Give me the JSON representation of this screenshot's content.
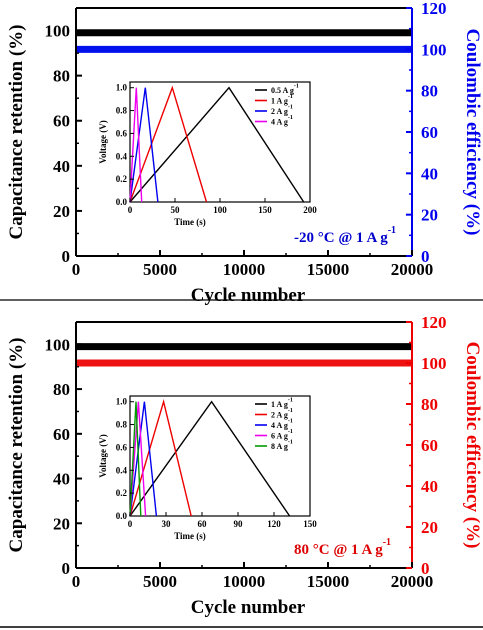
{
  "chart_data": [
    {
      "id": "top",
      "type": "scatter",
      "title": "",
      "xlabel": "Cycle number",
      "ylabel_left": "Capacitance retention (%)",
      "ylabel_right": "Coulombic efficiency (%)",
      "xlim": [
        0,
        20000
      ],
      "ylim_left": [
        0,
        110
      ],
      "ylim_right": [
        0,
        120
      ],
      "xticks": [
        "0",
        "5000",
        "10000",
        "15000",
        "20000"
      ],
      "yticks_left": [
        "0",
        "20",
        "40",
        "60",
        "80",
        "100"
      ],
      "yticks_right": [
        "0",
        "20",
        "40",
        "60",
        "80",
        "100",
        "120"
      ],
      "annotation": "-20 °C  @ 1 A g",
      "annotation_sup": "-1",
      "annotation_color": "#0000cc",
      "colors": {
        "retention": "#000000",
        "efficiency": "#0011ee",
        "axis_right": "#0000ee"
      },
      "series": [
        {
          "axis": "left",
          "x": [
            0,
            2000,
            4000,
            6000,
            8000,
            10000,
            12000,
            14000,
            16000,
            18000,
            20000
          ],
          "values": [
            99,
            99,
            99,
            99,
            99,
            99,
            99,
            99,
            99,
            99,
            99
          ]
        },
        {
          "axis": "right",
          "x": [
            0,
            2000,
            4000,
            6000,
            8000,
            10000,
            12000,
            14000,
            16000,
            18000,
            20000
          ],
          "values": [
            100,
            100,
            100,
            100,
            100,
            100,
            100,
            100,
            100,
            100,
            100
          ]
        }
      ],
      "inset": {
        "type": "line",
        "xlabel": "Time (s)",
        "ylabel": "Voltage (V)",
        "xlim": [
          0,
          200
        ],
        "ylim": [
          0,
          1.05
        ],
        "xticks": [
          "0",
          "50",
          "100",
          "150",
          "200"
        ],
        "yticks": [
          "0.0",
          "0.2",
          "0.4",
          "0.6",
          "0.8",
          "1.0"
        ],
        "legend_position": "top-right",
        "series": [
          {
            "name": "0.5 A g",
            "sup": "-1",
            "color": "#000000",
            "x": [
              0,
              110,
              193
            ],
            "values": [
              0,
              1.0,
              0
            ]
          },
          {
            "name": "1 A g",
            "sup": "-1",
            "color": "#ee0000",
            "x": [
              0,
              47,
              85
            ],
            "values": [
              0,
              1.0,
              0
            ]
          },
          {
            "name": "2 A g",
            "sup": "-1",
            "color": "#0000ee",
            "x": [
              0,
              17,
              31
            ],
            "values": [
              0,
              1.0,
              0
            ]
          },
          {
            "name": "4 A g",
            "sup": "-1",
            "color": "#ee00ee",
            "x": [
              0,
              7,
              13
            ],
            "values": [
              0,
              1.0,
              0
            ]
          }
        ]
      }
    },
    {
      "id": "bottom",
      "type": "scatter",
      "title": "",
      "xlabel": "Cycle number",
      "ylabel_left": "Capacitance retention (%)",
      "ylabel_right": "Coulombic efficiency (%)",
      "xlim": [
        0,
        20000
      ],
      "ylim_left": [
        0,
        110
      ],
      "ylim_right": [
        0,
        120
      ],
      "xticks": [
        "0",
        "5000",
        "10000",
        "15000",
        "20000"
      ],
      "yticks_left": [
        "0",
        "20",
        "40",
        "60",
        "80",
        "100"
      ],
      "yticks_right": [
        "0",
        "20",
        "40",
        "60",
        "80",
        "100",
        "120"
      ],
      "annotation": "80 °C  @ 1 A g",
      "annotation_sup": "-1",
      "annotation_color": "#dd0000",
      "colors": {
        "retention": "#000000",
        "efficiency": "#ee1111",
        "axis_right": "#ee0000"
      },
      "series": [
        {
          "axis": "left",
          "x": [
            0,
            2000,
            4000,
            6000,
            8000,
            10000,
            12000,
            14000,
            16000,
            18000,
            20000
          ],
          "values": [
            99,
            99,
            99,
            99,
            99,
            99,
            99,
            99,
            99,
            99,
            99
          ]
        },
        {
          "axis": "right",
          "x": [
            0,
            2000,
            4000,
            6000,
            8000,
            10000,
            12000,
            14000,
            16000,
            18000,
            20000
          ],
          "values": [
            100,
            100,
            100,
            100,
            100,
            100,
            100,
            100,
            100,
            100,
            100
          ]
        }
      ],
      "inset": {
        "type": "line",
        "xlabel": "Time (s)",
        "ylabel": "Voltage (V)",
        "xlim": [
          0,
          150
        ],
        "ylim": [
          0,
          1.05
        ],
        "xticks": [
          "0",
          "30",
          "60",
          "90",
          "120",
          "150"
        ],
        "yticks": [
          "0.0",
          "0.2",
          "0.4",
          "0.6",
          "0.8",
          "1.0"
        ],
        "legend_position": "top-right",
        "series": [
          {
            "name": "1 A g",
            "sup": "-1",
            "color": "#000000",
            "x": [
              0,
              68,
              133
            ],
            "values": [
              0,
              1.0,
              0
            ]
          },
          {
            "name": "2 A g",
            "sup": "-1",
            "color": "#ee0000",
            "x": [
              0,
              28,
              51
            ],
            "values": [
              0,
              1.0,
              0
            ]
          },
          {
            "name": "4 A g",
            "sup": "-1",
            "color": "#0000ee",
            "x": [
              0,
              12,
              22
            ],
            "values": [
              0,
              1.0,
              0
            ]
          },
          {
            "name": "6 A g",
            "sup": "-1",
            "color": "#ee00ee",
            "x": [
              0,
              7,
              13
            ],
            "values": [
              0,
              1.0,
              0
            ]
          },
          {
            "name": "8 A g",
            "sup": "-1",
            "color": "#009900",
            "x": [
              0,
              5,
              9
            ],
            "values": [
              0,
              1.0,
              0
            ]
          }
        ]
      }
    }
  ]
}
